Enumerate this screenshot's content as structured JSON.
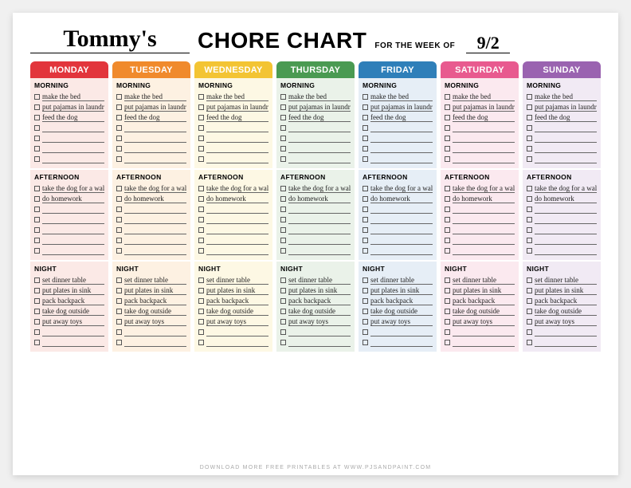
{
  "header": {
    "name": "Tommy's",
    "title": "CHORE CHART",
    "subtitle": "FOR THE WEEK OF",
    "week": "9/2"
  },
  "rows_per_section": 7,
  "sections": [
    {
      "key": "morning",
      "label": "MORNING"
    },
    {
      "key": "afternoon",
      "label": "AFTERNOON"
    },
    {
      "key": "night",
      "label": "NIGHT"
    }
  ],
  "days": [
    {
      "key": "mon",
      "label": "MONDAY",
      "header_color": "#e2353c",
      "bg_color": "#fbe9e6"
    },
    {
      "key": "tue",
      "label": "TUESDAY",
      "header_color": "#f08a2c",
      "bg_color": "#fdf1e2"
    },
    {
      "key": "wed",
      "label": "WEDNESDAY",
      "header_color": "#f3c433",
      "bg_color": "#fdf8e4"
    },
    {
      "key": "thu",
      "label": "THURSDAY",
      "header_color": "#4a9a52",
      "bg_color": "#eaf2e9"
    },
    {
      "key": "fri",
      "label": "FRIDAY",
      "header_color": "#2f7fb9",
      "bg_color": "#e6eef6"
    },
    {
      "key": "sat",
      "label": "SATURDAY",
      "header_color": "#e85a8f",
      "bg_color": "#fbe9ef"
    },
    {
      "key": "sun",
      "label": "SUNDAY",
      "header_color": "#9a63b0",
      "bg_color": "#f1eaf4"
    }
  ],
  "tasks": {
    "morning": [
      "make the bed",
      "put pajamas in laundry",
      "feed the dog"
    ],
    "afternoon": [
      "take the dog for a walk",
      "do homework"
    ],
    "night": [
      "set dinner table",
      "put plates in sink",
      "pack backpack",
      "take dog outside",
      "put away toys"
    ]
  },
  "footer": "DOWNLOAD MORE FREE PRINTABLES AT WWW.PJSANDPAINT.COM",
  "style": {
    "page_bg": "#ffffff",
    "checkbox_border": "#555555",
    "line_color": "#666666",
    "title_fontsize": 28,
    "dayheader_fontsize": 11,
    "section_fontsize": 8.5,
    "task_fontsize": 9,
    "footer_fontsize": 7
  }
}
